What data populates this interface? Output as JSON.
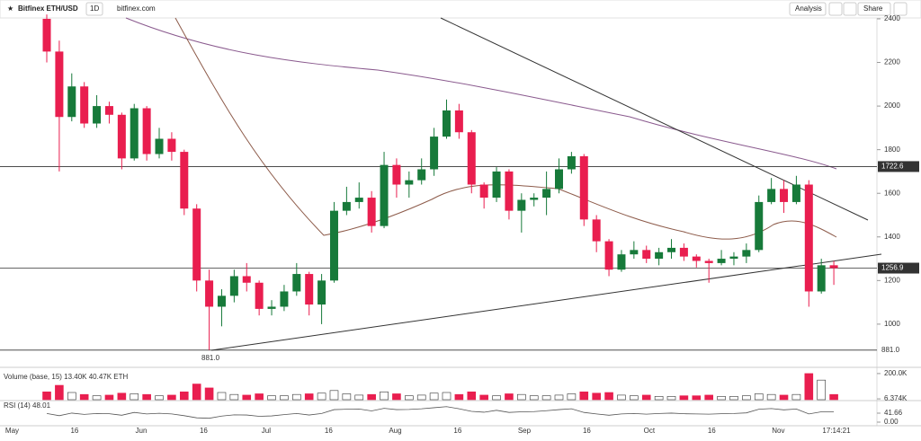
{
  "header": {
    "symbol": "Bitfinex ETH/USD",
    "interval": "1D",
    "site": "bitfinex.com",
    "analysis": "Analysis",
    "share": "Share"
  },
  "chart_data": {
    "type": "candlestick",
    "up_color": "#177a3a",
    "down_color": "#e91e4f",
    "x": [
      "05-09",
      "05-12",
      "05-15",
      "05-18",
      "05-21",
      "05-24",
      "05-27",
      "05-30",
      "06-02",
      "06-05",
      "06-08",
      "06-11",
      "06-14",
      "06-17",
      "06-20",
      "06-23",
      "06-26",
      "06-29",
      "07-02",
      "07-05",
      "07-08",
      "07-11",
      "07-14",
      "07-17",
      "07-20",
      "07-23",
      "07-26",
      "07-29",
      "08-01",
      "08-04",
      "08-07",
      "08-10",
      "08-13",
      "08-16",
      "08-19",
      "08-22",
      "08-25",
      "08-28",
      "08-31",
      "09-03",
      "09-06",
      "09-09",
      "09-12",
      "09-15",
      "09-18",
      "09-21",
      "09-24",
      "09-27",
      "09-30",
      "10-03",
      "10-06",
      "10-09",
      "10-12",
      "10-15",
      "10-18",
      "10-21",
      "10-24",
      "10-27",
      "10-30",
      "11-02",
      "11-05",
      "11-08",
      "11-11",
      "11-14"
    ],
    "open": [
      2400,
      2250,
      1950,
      2090,
      1920,
      2000,
      1960,
      1760,
      1990,
      1780,
      1850,
      1790,
      1530,
      1200,
      1080,
      1130,
      1220,
      1190,
      1070,
      1080,
      1150,
      1230,
      1090,
      1200,
      1520,
      1560,
      1580,
      1450,
      1730,
      1640,
      1660,
      1710,
      1860,
      1980,
      1880,
      1640,
      1580,
      1700,
      1520,
      1570,
      1580,
      1620,
      1710,
      1770,
      1480,
      1380,
      1250,
      1320,
      1340,
      1300,
      1330,
      1350,
      1310,
      1290,
      1280,
      1300,
      1310,
      1340,
      1560,
      1620,
      1560,
      1640,
      1150,
      1270
    ],
    "high": [
      2420,
      2300,
      2150,
      2110,
      2050,
      2020,
      1970,
      2010,
      2000,
      1900,
      1880,
      1800,
      1550,
      1250,
      1160,
      1250,
      1280,
      1200,
      1110,
      1180,
      1280,
      1240,
      1230,
      1560,
      1630,
      1650,
      1610,
      1790,
      1760,
      1700,
      1760,
      1900,
      2030,
      2010,
      1890,
      1650,
      1720,
      1710,
      1600,
      1600,
      1700,
      1760,
      1790,
      1780,
      1500,
      1390,
      1340,
      1380,
      1360,
      1350,
      1390,
      1370,
      1320,
      1300,
      1340,
      1330,
      1370,
      1590,
      1670,
      1660,
      1680,
      1660,
      1300,
      1290
    ],
    "low": [
      2200,
      1700,
      1930,
      1900,
      1900,
      1920,
      1710,
      1750,
      1750,
      1760,
      1750,
      1500,
      1150,
      881,
      990,
      1100,
      1150,
      1040,
      1040,
      1060,
      1130,
      1040,
      1000,
      1190,
      1500,
      1530,
      1420,
      1440,
      1580,
      1580,
      1640,
      1680,
      1850,
      1850,
      1600,
      1530,
      1560,
      1480,
      1420,
      1540,
      1500,
      1600,
      1690,
      1450,
      1330,
      1220,
      1240,
      1300,
      1280,
      1270,
      1300,
      1290,
      1260,
      1190,
      1270,
      1270,
      1280,
      1330,
      1550,
      1510,
      1550,
      1080,
      1140,
      1180
    ],
    "close": [
      2250,
      1950,
      2090,
      1920,
      2000,
      1960,
      1760,
      1990,
      1780,
      1850,
      1790,
      1530,
      1200,
      1080,
      1130,
      1220,
      1190,
      1070,
      1080,
      1150,
      1230,
      1090,
      1200,
      1520,
      1560,
      1580,
      1450,
      1730,
      1640,
      1660,
      1710,
      1860,
      1980,
      1880,
      1640,
      1580,
      1700,
      1520,
      1570,
      1580,
      1620,
      1710,
      1770,
      1480,
      1380,
      1250,
      1320,
      1340,
      1300,
      1330,
      1350,
      1310,
      1290,
      1280,
      1300,
      1310,
      1340,
      1560,
      1620,
      1560,
      1640,
      1150,
      1270,
      1256.9
    ],
    "volume": [
      60,
      110,
      55,
      40,
      30,
      35,
      50,
      45,
      40,
      30,
      35,
      60,
      120,
      90,
      55,
      40,
      35,
      45,
      30,
      30,
      40,
      45,
      50,
      70,
      45,
      35,
      40,
      60,
      45,
      30,
      35,
      50,
      55,
      40,
      60,
      35,
      30,
      45,
      40,
      30,
      30,
      35,
      45,
      60,
      50,
      55,
      35,
      30,
      35,
      25,
      25,
      30,
      30,
      35,
      25,
      25,
      30,
      45,
      40,
      35,
      40,
      200,
      150,
      40
    ],
    "rsi": [
      40,
      30,
      42,
      36,
      40,
      39,
      32,
      45,
      38,
      41,
      38,
      30,
      20,
      18,
      28,
      34,
      33,
      27,
      29,
      35,
      40,
      33,
      40,
      58,
      60,
      61,
      52,
      64,
      58,
      59,
      62,
      67,
      72,
      62,
      50,
      46,
      55,
      45,
      48,
      49,
      53,
      58,
      62,
      45,
      38,
      32,
      38,
      40,
      37,
      40,
      42,
      39,
      38,
      37,
      39,
      40,
      43,
      60,
      63,
      57,
      61,
      38,
      48,
      48.01
    ],
    "ylim": [
      806,
      2404
    ],
    "yticks": [
      1000,
      1200,
      1400,
      1600,
      1800,
      2000,
      2200,
      2400
    ],
    "levels": [
      {
        "value": 1722.6,
        "label": "1722.6"
      },
      {
        "value": 1256.9,
        "label": "1256.9"
      },
      {
        "value": 881,
        "label": "881.0"
      }
    ],
    "low_annotation": {
      "value": 881,
      "label": "881.0"
    },
    "xticks": [
      {
        "value": "05-01",
        "label": "May"
      },
      {
        "value": "05-16",
        "label": "16"
      },
      {
        "value": "06-01",
        "label": "Jun"
      },
      {
        "value": "06-16",
        "label": "16"
      },
      {
        "value": "07-01",
        "label": "Jul"
      },
      {
        "value": "07-16",
        "label": "16"
      },
      {
        "value": "08-01",
        "label": "Aug"
      },
      {
        "value": "08-16",
        "label": "16"
      },
      {
        "value": "09-01",
        "label": "Sep"
      },
      {
        "value": "09-16",
        "label": "16"
      },
      {
        "value": "10-01",
        "label": "Oct"
      },
      {
        "value": "10-16",
        "label": "16"
      },
      {
        "value": "11-01",
        "label": "Nov"
      }
    ],
    "time": "17:14:21",
    "volume_legend": "Volume (base, 15)  13.40K  40.47K ETH",
    "volume_ylim": [
      0,
      220
    ],
    "volume_ticks": [
      {
        "value": 200,
        "label": "200.0K"
      },
      {
        "value": 6.374,
        "label": "6.374K"
      }
    ],
    "rsi_legend": "RSI (14)  48.01",
    "rsi_ylim": [
      0,
      100
    ],
    "rsi_ticks": [
      {
        "value": 41.66,
        "label": "41.66"
      },
      {
        "value": 0,
        "label": "0.00"
      }
    ]
  }
}
